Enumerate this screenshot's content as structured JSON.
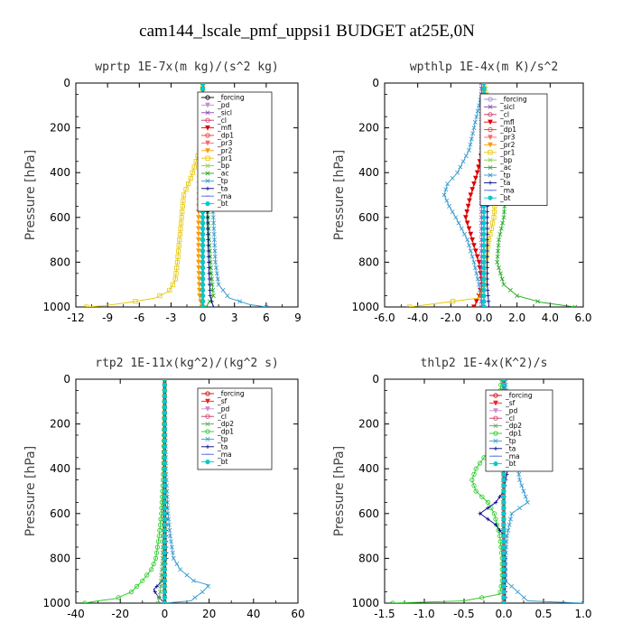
{
  "title": "cam144_lscale_pmf_uppsi1  BUDGET at25E,0N",
  "chart_data": [
    {
      "type": "line",
      "title": "wprtp   1E-7x(m kg)/(s^2 kg)",
      "ylabel": "Pressure [hPa]",
      "xlim": [
        -12,
        9
      ],
      "ylim": [
        1000,
        0
      ],
      "xticks": [
        "-12",
        "-9",
        "-6",
        "-3",
        "0",
        "3",
        "6",
        "9"
      ],
      "xtick_values": [
        -12,
        -9,
        -6,
        -3,
        0,
        3,
        6,
        9
      ],
      "yticks": [
        "0",
        "200",
        "400",
        "600",
        "800",
        "1000"
      ],
      "ytick_values": [
        0,
        200,
        400,
        600,
        800,
        1000
      ],
      "legend": [
        "_forcing",
        "_pd",
        "_sicl",
        "_cl",
        "_mfl",
        "_dp1",
        "_pr3",
        "_pr2",
        "_pr1",
        "_bp",
        "_ac",
        "_tp",
        "_ta",
        "_ma",
        "_bt"
      ],
      "series": [
        {
          "name": "_pr1",
          "color": "#e6c800",
          "p": [
            0,
            300,
            420,
            500,
            600,
            700,
            800,
            880,
            930,
            960,
            980,
            995,
            1000
          ],
          "x": [
            0,
            -0.3,
            -1.1,
            -1.8,
            -2.0,
            -2.2,
            -2.4,
            -2.6,
            -3.2,
            -4.5,
            -7,
            -9.5,
            -11
          ]
        },
        {
          "name": "_ac",
          "color": "#22aa22",
          "p": [
            0,
            300,
            500,
            700,
            850,
            950,
            1000
          ],
          "x": [
            0,
            0.2,
            0.4,
            0.6,
            0.8,
            1.0,
            0.3
          ]
        },
        {
          "name": "_tp",
          "color": "#3399cc",
          "p": [
            0,
            350,
            450,
            600,
            800,
            900,
            960,
            990,
            1000
          ],
          "x": [
            0,
            0.4,
            0.8,
            1.0,
            1.2,
            1.5,
            2.5,
            4.5,
            6.0
          ]
        },
        {
          "name": "_ta",
          "color": "#000088",
          "p": [
            0,
            300,
            500,
            700,
            850,
            950,
            1000
          ],
          "x": [
            0,
            0.2,
            0.4,
            0.5,
            0.6,
            0.7,
            1.0
          ]
        },
        {
          "name": "_pr2",
          "color": "#ff9900",
          "p": [
            0,
            400,
            600,
            800,
            950,
            1000
          ],
          "x": [
            0,
            -0.3,
            -0.4,
            -0.4,
            -0.3,
            -0.1
          ]
        },
        {
          "name": "_forcing",
          "color": "#000000",
          "p": [
            0,
            500,
            1000
          ],
          "x": [
            0,
            0,
            0
          ]
        },
        {
          "name": "_bt",
          "color": "#00cccc",
          "p": [
            0,
            500,
            1000
          ],
          "x": [
            0,
            0,
            0
          ]
        }
      ]
    },
    {
      "type": "line",
      "title": "wpthlp   1E-4x(m K)/s^2",
      "ylabel": "Pressure [hPa]",
      "xlim": [
        -6.0,
        6.0
      ],
      "ylim": [
        1000,
        0
      ],
      "xticks": [
        "-6.0",
        "-4.0",
        "-2.0",
        "0.0",
        "2.0",
        "4.0",
        "6.0"
      ],
      "xtick_values": [
        -6,
        -4,
        -2,
        0,
        2,
        4,
        6
      ],
      "yticks": [
        "0",
        "200",
        "400",
        "600",
        "800",
        "1000"
      ],
      "ytick_values": [
        0,
        200,
        400,
        600,
        800,
        1000
      ],
      "legend": [
        "_forcing",
        "_sicl",
        "_cl",
        "_mfl",
        "_dp1",
        "_pr3",
        "_pr2",
        "_pr1",
        "_bp",
        "_ac",
        "_tp",
        "_ta",
        "_ma",
        "_bt"
      ],
      "series": [
        {
          "name": "_tp",
          "color": "#3399cc",
          "p": [
            0,
            100,
            200,
            300,
            400,
            450,
            500,
            550,
            600,
            700,
            800,
            900,
            950,
            990,
            1000
          ],
          "x": [
            0,
            -0.3,
            -0.6,
            -0.9,
            -1.6,
            -2.2,
            -2.4,
            -2.1,
            -1.7,
            -1.0,
            -0.6,
            -0.3,
            -0.2,
            -0.1,
            0
          ]
        },
        {
          "name": "_ac",
          "color": "#22aa22",
          "p": [
            0,
            100,
            200,
            300,
            400,
            500,
            600,
            700,
            800,
            900,
            950,
            980,
            1000
          ],
          "x": [
            0,
            0.3,
            0.7,
            0.9,
            1.1,
            1.3,
            1.2,
            0.9,
            0.8,
            1.2,
            2.0,
            3.5,
            5.5
          ]
        },
        {
          "name": "_mfl",
          "color": "#dd0000",
          "p": [
            0,
            300,
            400,
            500,
            600,
            700,
            800,
            900,
            950,
            1000
          ],
          "x": [
            0,
            -0.1,
            -0.4,
            -0.8,
            -1.1,
            -0.7,
            -0.3,
            -0.1,
            -0.3,
            -0.6
          ]
        },
        {
          "name": "_pr1",
          "color": "#e6c800",
          "p": [
            0,
            300,
            400,
            500,
            600,
            700,
            800,
            900,
            960,
            1000
          ],
          "x": [
            0,
            0.1,
            0.4,
            0.7,
            0.6,
            0.3,
            0.1,
            0.05,
            -0.3,
            -4.5
          ]
        },
        {
          "name": "_ta",
          "color": "#000088",
          "p": [
            0,
            300,
            500,
            700,
            900,
            1000
          ],
          "x": [
            0,
            0.1,
            0.2,
            0.2,
            0.2,
            0.3
          ]
        },
        {
          "name": "_sicl",
          "color": "#8844aa",
          "p": [
            0,
            500,
            1000
          ],
          "x": [
            -0.15,
            -0.15,
            -0.15
          ]
        },
        {
          "name": "_forcing",
          "color": "#aa88cc",
          "p": [
            0,
            500,
            1000
          ],
          "x": [
            0,
            0,
            0
          ]
        },
        {
          "name": "_bt",
          "color": "#00cccc",
          "p": [
            0,
            500,
            1000
          ],
          "x": [
            0,
            0,
            0
          ]
        }
      ]
    },
    {
      "type": "line",
      "title": "rtp2   1E-11x(kg^2)/(kg^2 s)",
      "ylabel": "Pressure [hPa]",
      "xlim": [
        -40,
        60
      ],
      "ylim": [
        1000,
        0
      ],
      "xticks": [
        "-40",
        "-20",
        "0",
        "20",
        "40",
        "60"
      ],
      "xtick_values": [
        -40,
        -20,
        0,
        20,
        40,
        60
      ],
      "yticks": [
        "0",
        "200",
        "400",
        "600",
        "800",
        "1000"
      ],
      "ytick_values": [
        0,
        200,
        400,
        600,
        800,
        1000
      ],
      "legend": [
        "_forcing",
        "_sf",
        "_pd",
        "_cl",
        "_dp2",
        "_dp1",
        "_tp",
        "_ta",
        "_ma",
        "_bt"
      ],
      "series": [
        {
          "name": "_dp1",
          "color": "#22cc22",
          "p": [
            0,
            400,
            600,
            700,
            800,
            850,
            900,
            950,
            980,
            990,
            1000
          ],
          "x": [
            0,
            -0.5,
            -1.5,
            -2.5,
            -4,
            -6,
            -10,
            -15,
            -22,
            -30,
            -36
          ]
        },
        {
          "name": "_tp",
          "color": "#3399cc",
          "p": [
            0,
            400,
            600,
            700,
            800,
            850,
            900,
            920,
            950,
            980,
            990,
            1000
          ],
          "x": [
            0,
            0.5,
            1.5,
            2.5,
            4,
            7,
            13,
            20,
            17,
            13,
            12,
            0
          ]
        },
        {
          "name": "_ta",
          "color": "#000088",
          "p": [
            0,
            400,
            600,
            800,
            900,
            940,
            970,
            990,
            1000
          ],
          "x": [
            0,
            0.2,
            0.5,
            0.8,
            -1,
            -5,
            -3,
            -1,
            0
          ]
        },
        {
          "name": "_dp2",
          "color": "#55aa55",
          "p": [
            0,
            500,
            800,
            950,
            1000
          ],
          "x": [
            0,
            -0.5,
            -1,
            -2,
            -3
          ]
        },
        {
          "name": "_pd",
          "color": "#ff9900",
          "p": [
            0,
            500,
            1000
          ],
          "x": [
            0,
            0,
            0
          ]
        },
        {
          "name": "_forcing",
          "color": "#cc0000",
          "p": [
            0,
            500,
            1000
          ],
          "x": [
            0,
            0,
            0
          ]
        },
        {
          "name": "_bt",
          "color": "#00cccc",
          "p": [
            0,
            500,
            1000
          ],
          "x": [
            0,
            0,
            0
          ]
        }
      ]
    },
    {
      "type": "line",
      "title": "thlp2   1E-4x(K^2)/s",
      "ylabel": "Pressure [hPa]",
      "xlim": [
        -1.5,
        1.0
      ],
      "ylim": [
        1000,
        0
      ],
      "xticks": [
        "-1.5",
        "-1.0",
        "-0.5",
        "0.0",
        "0.5",
        "1.0"
      ],
      "xtick_values": [
        -1.5,
        -1.0,
        -0.5,
        0.0,
        0.5,
        1.0
      ],
      "yticks": [
        "0",
        "200",
        "400",
        "600",
        "800",
        "1000"
      ],
      "ytick_values": [
        0,
        200,
        400,
        600,
        800,
        1000
      ],
      "legend": [
        "_forcing",
        "_sf",
        "_pd",
        "_cl",
        "_dp2",
        "_dp1",
        "_tp",
        "_ta",
        "_ma",
        "_bt"
      ],
      "series": [
        {
          "name": "_dp1",
          "color": "#22cc22",
          "p": [
            0,
            200,
            300,
            350,
            400,
            450,
            500,
            550,
            600,
            700,
            800,
            900,
            960,
            990,
            1000
          ],
          "x": [
            -0.03,
            -0.08,
            -0.15,
            -0.25,
            -0.35,
            -0.4,
            -0.35,
            -0.2,
            -0.12,
            -0.05,
            -0.02,
            -0.02,
            -0.05,
            -0.5,
            -1.4
          ]
        },
        {
          "name": "_tp",
          "color": "#3399cc",
          "p": [
            0,
            200,
            300,
            350,
            400,
            450,
            500,
            550,
            600,
            700,
            800,
            900,
            990,
            1000
          ],
          "x": [
            0.02,
            0.06,
            0.1,
            0.15,
            0.18,
            0.2,
            0.25,
            0.3,
            0.1,
            0.04,
            0.02,
            0.02,
            0.3,
            1.0
          ]
        },
        {
          "name": "_ta",
          "color": "#000088",
          "p": [
            0,
            400,
            500,
            550,
            600,
            650,
            700,
            800,
            1000
          ],
          "x": [
            0,
            0.05,
            0,
            -0.1,
            -0.3,
            -0.1,
            0,
            0.02,
            0.02
          ]
        },
        {
          "name": "_dp2",
          "color": "#55aa55",
          "p": [
            0,
            500,
            1000
          ],
          "x": [
            -0.01,
            -0.01,
            -0.01
          ]
        },
        {
          "name": "_forcing",
          "color": "#cc0000",
          "p": [
            0,
            500,
            1000
          ],
          "x": [
            0,
            0,
            0
          ]
        },
        {
          "name": "_bt",
          "color": "#00cccc",
          "p": [
            0,
            500,
            1000
          ],
          "x": [
            0,
            0,
            0
          ]
        }
      ]
    }
  ]
}
